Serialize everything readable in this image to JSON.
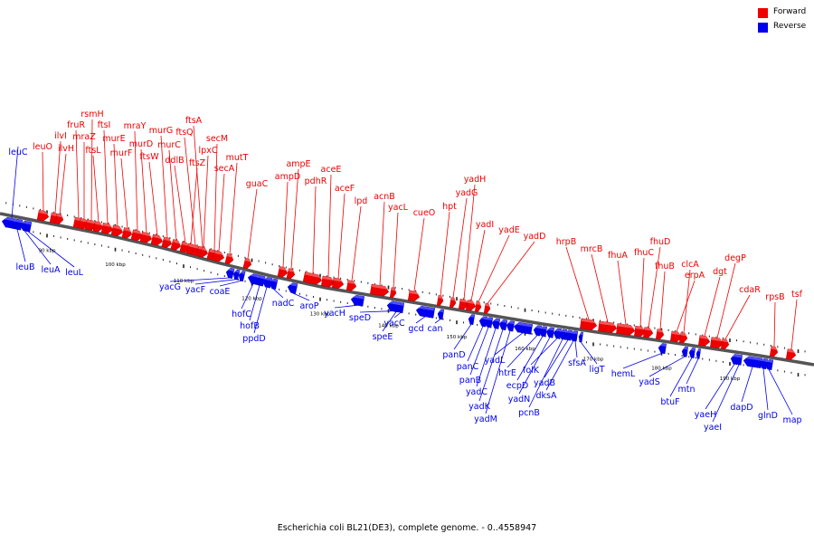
{
  "caption": "Escherichia coli BL21(DE3), complete genome. - 0..4558947",
  "legend": {
    "forward_label": "Forward",
    "reverse_label": "Reverse",
    "forward_color": "#ee0000",
    "reverse_color": "#0000ee"
  },
  "colors": {
    "forward": "#ee0000",
    "forward_light": "#ff9a9a",
    "reverse": "#0000ee",
    "reverse_light": "#8a8aff",
    "backbone": "#555555"
  },
  "chart_data": {
    "type": "genome-map",
    "range_kbp": [
      84,
      201
    ],
    "tick_labels": [
      "90 kbp",
      "100 kbp",
      "110 kbp",
      "120 kbp",
      "130 kbp",
      "140 kbp",
      "150 kbp",
      "160 kbp",
      "170 kbp",
      "180 kbp",
      "190 kbp"
    ],
    "forward_genes": [
      "leuO",
      "ilvI",
      "ilvH",
      "fruR",
      "mraZ",
      "rsmH",
      "ftsL",
      "ftsI",
      "murE",
      "murF",
      "mraY",
      "murD",
      "ftsW",
      "murG",
      "murC",
      "ddlB",
      "ftsQ",
      "ftsA",
      "ftsZ",
      "lpxC",
      "secM",
      "secA",
      "mutT",
      "guaC",
      "ampD",
      "ampE",
      "pdhR",
      "aceE",
      "aceF",
      "lpd",
      "acnB",
      "yacL",
      "cueO",
      "hpt",
      "yadG",
      "yadH",
      "yadI",
      "yadE",
      "yadD",
      "hrpB",
      "mrcB",
      "fhuA",
      "fhuC",
      "fhuD",
      "fhuB",
      "erpA",
      "clcA",
      "dgt",
      "degP",
      "cdaR",
      "rpsB",
      "tsf"
    ],
    "reverse_genes": [
      "leuC",
      "leuB",
      "leuA",
      "leuL",
      "yacG",
      "yacF",
      "coaE",
      "hofC",
      "hofB",
      "ppdD",
      "nadC",
      "aroP",
      "yacH",
      "speD",
      "speE",
      "yacC",
      "gcd",
      "can",
      "panD",
      "panC",
      "panB",
      "yadC",
      "yadK",
      "yadM",
      "yadL",
      "htrE",
      "ecpD",
      "yadN",
      "folK",
      "pcnB",
      "yadB",
      "dksA",
      "sfsA",
      "ligT",
      "hemL",
      "yadS",
      "btuF",
      "mtn",
      "yaeH",
      "yaeI",
      "dapD",
      "glnD",
      "map"
    ]
  }
}
